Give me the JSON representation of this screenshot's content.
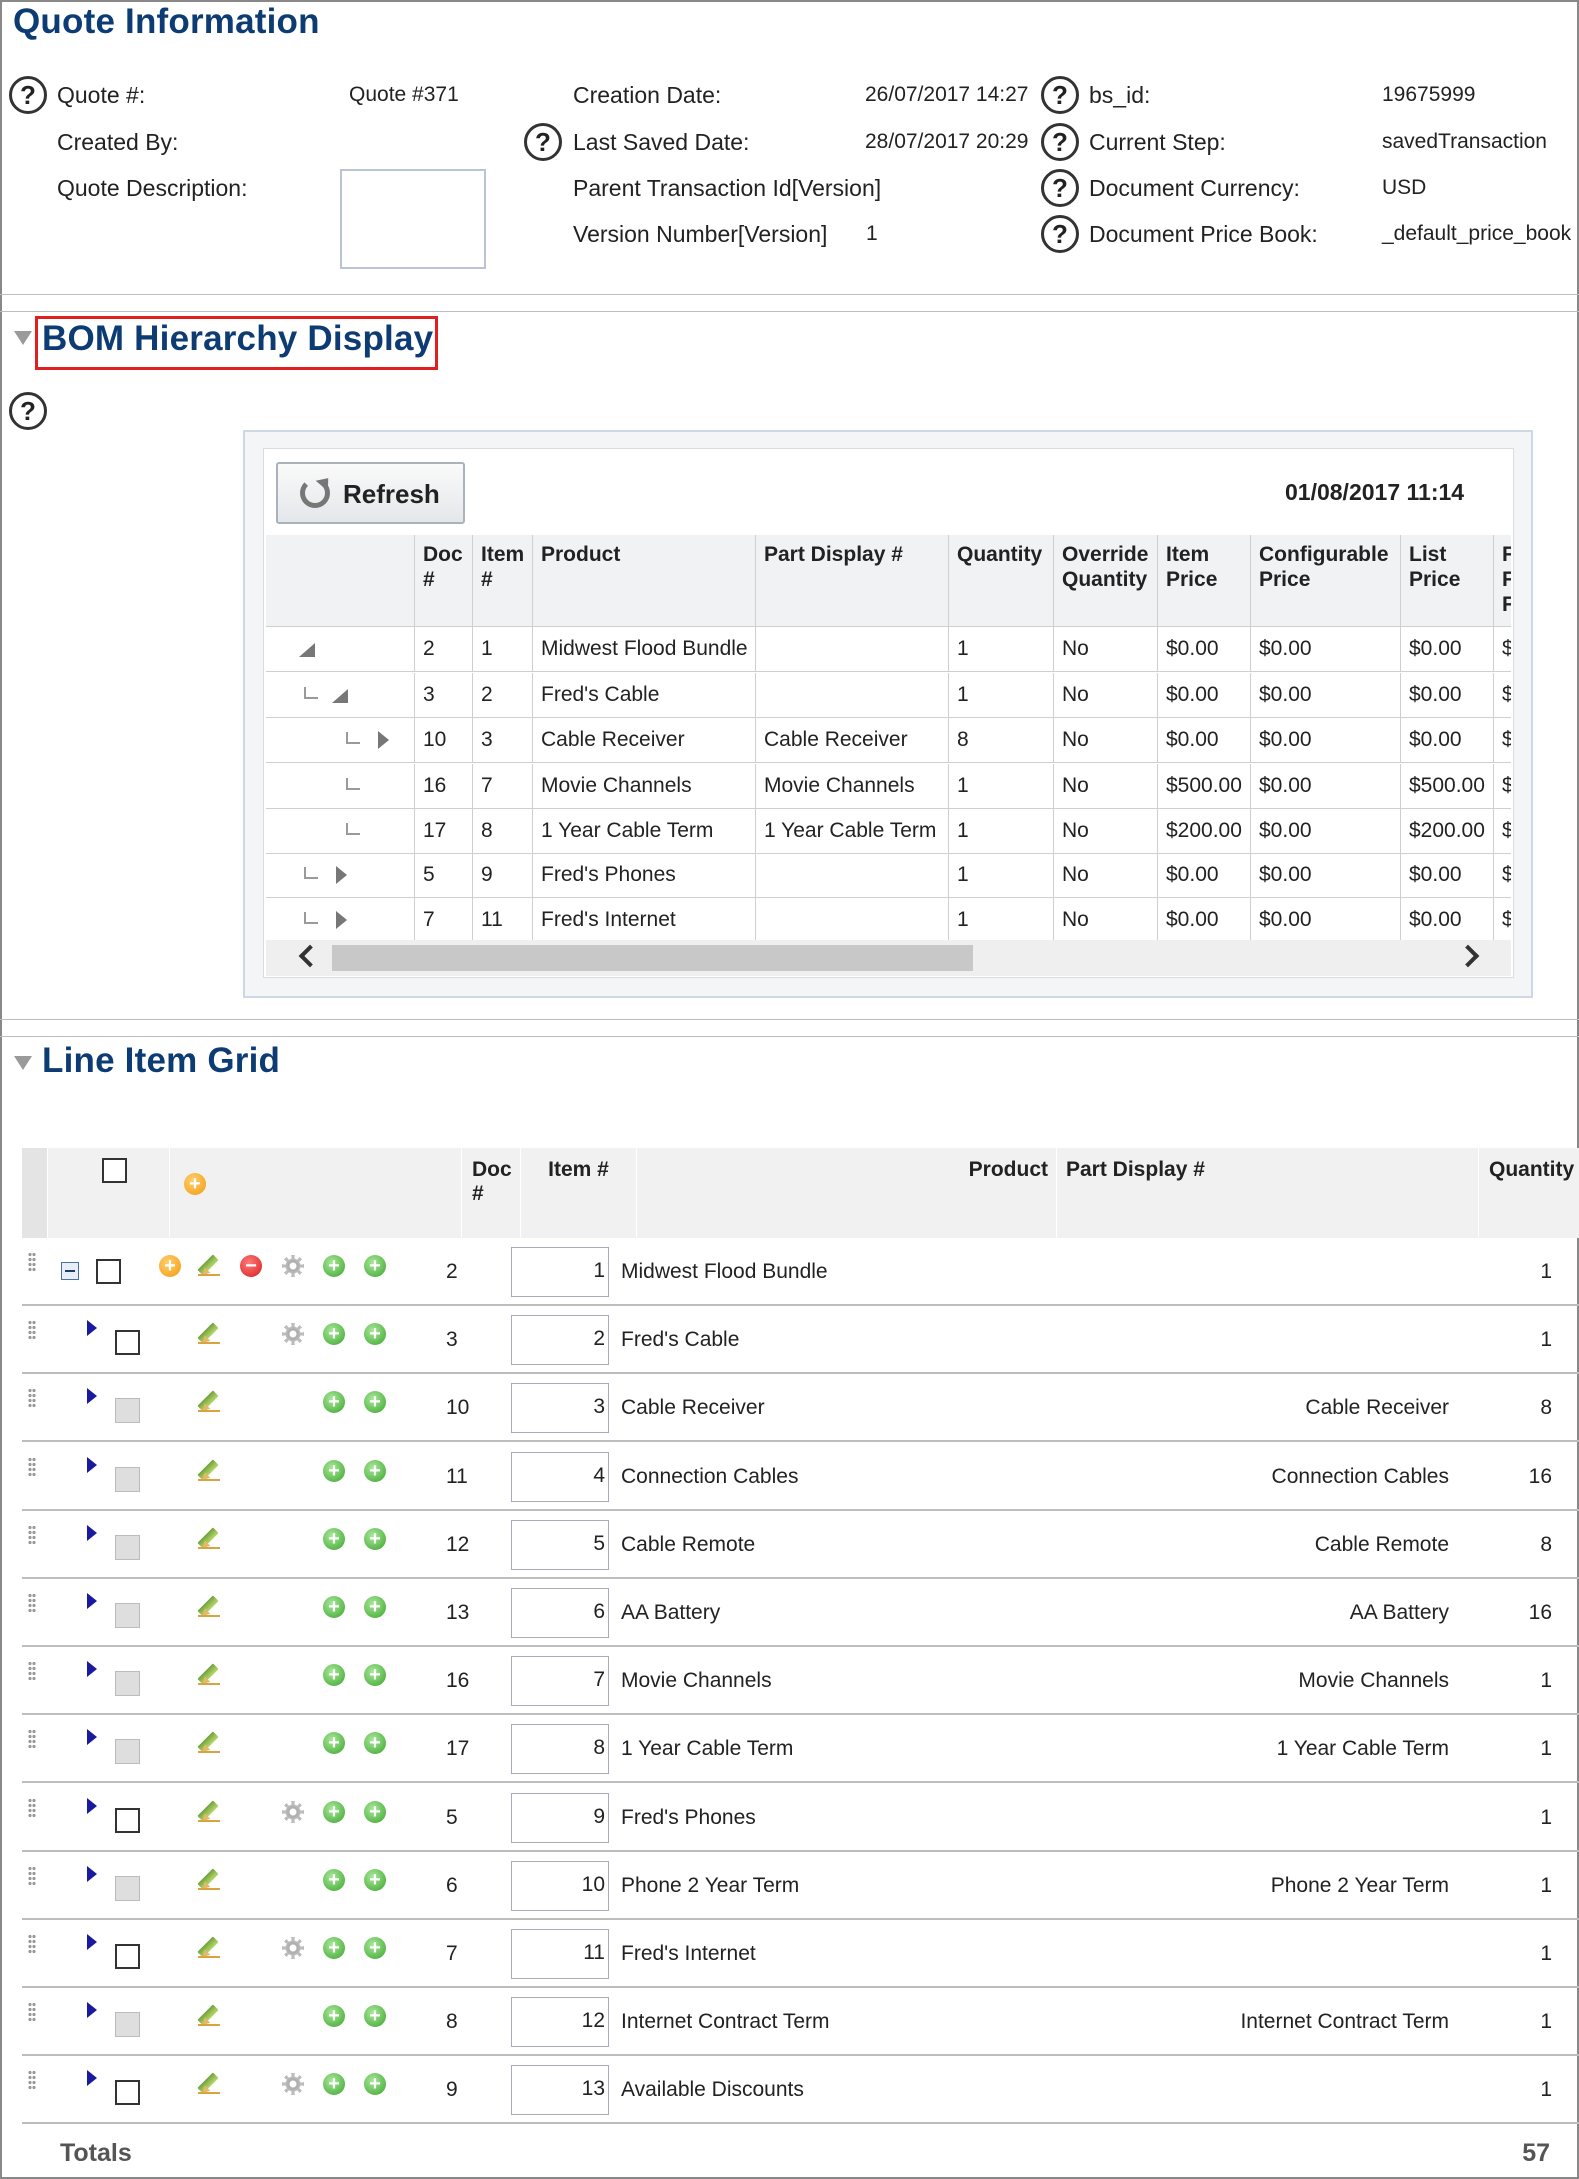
{
  "quote_info": {
    "title": "Quote Information",
    "quote_num_label": "Quote #:",
    "quote_num_value": "Quote #371",
    "created_by_label": "Created By:",
    "quote_desc_label": "Quote Description:",
    "creation_date_label": "Creation Date:",
    "creation_date_value": "26/07/2017 14:27",
    "last_saved_label": "Last Saved Date:",
    "last_saved_value": "28/07/2017 20:29",
    "parent_tx_label": "Parent Transaction Id[Version]",
    "version_label": "Version Number[Version]",
    "version_value": "1",
    "bs_id_label": "bs_id:",
    "bs_id_value": "19675999",
    "current_step_label": "Current Step:",
    "current_step_value": "savedTransaction",
    "currency_label": "Document Currency:",
    "currency_value": "USD",
    "price_book_label": "Document Price Book:",
    "price_book_value": "_default_price_book"
  },
  "bom": {
    "title": "BOM Hierarchy Display",
    "refresh_label": "Refresh",
    "date": "01/08/2017 11:14",
    "columns": [
      "Doc #",
      "Item #",
      "Product",
      "Part Display #",
      "Quantity",
      "Override Quantity",
      "Item Price",
      "Configurable Price",
      "List Price",
      "F F F"
    ],
    "rows": [
      {
        "doc": "2",
        "item": "1",
        "product": "Midwest Flood Bundle",
        "part": "",
        "qty": "1",
        "override": "No",
        "item_price": "$0.00",
        "config_price": "$0.00",
        "list_price": "$0.00",
        "trunc": "$"
      },
      {
        "doc": "3",
        "item": "2",
        "product": "Fred's Cable",
        "part": "",
        "qty": "1",
        "override": "No",
        "item_price": "$0.00",
        "config_price": "$0.00",
        "list_price": "$0.00",
        "trunc": "$"
      },
      {
        "doc": "10",
        "item": "3",
        "product": "Cable Receiver",
        "part": "Cable Receiver",
        "qty": "8",
        "override": "No",
        "item_price": "$0.00",
        "config_price": "$0.00",
        "list_price": "$0.00",
        "trunc": "$"
      },
      {
        "doc": "16",
        "item": "7",
        "product": "Movie Channels",
        "part": "Movie Channels",
        "qty": "1",
        "override": "No",
        "item_price": "$500.00",
        "config_price": "$0.00",
        "list_price": "$500.00",
        "trunc": "$"
      },
      {
        "doc": "17",
        "item": "8",
        "product": "1 Year Cable Term",
        "part": "1 Year Cable Term",
        "qty": "1",
        "override": "No",
        "item_price": "$200.00",
        "config_price": "$0.00",
        "list_price": "$200.00",
        "trunc": "$"
      },
      {
        "doc": "5",
        "item": "9",
        "product": "Fred's Phones",
        "part": "",
        "qty": "1",
        "override": "No",
        "item_price": "$0.00",
        "config_price": "$0.00",
        "list_price": "$0.00",
        "trunc": "$"
      },
      {
        "doc": "7",
        "item": "11",
        "product": "Fred's Internet",
        "part": "",
        "qty": "1",
        "override": "No",
        "item_price": "$0.00",
        "config_price": "$0.00",
        "list_price": "$0.00",
        "trunc": "$"
      }
    ]
  },
  "line_items": {
    "title": "Line Item Grid",
    "columns": {
      "doc": "Doc #",
      "item": "Item #",
      "product": "Product",
      "part": "Part Display #",
      "qty": "Quantity"
    },
    "rows": [
      {
        "doc": "2",
        "item": "1",
        "product": "Midwest Flood Bundle",
        "part": "",
        "qty": "1"
      },
      {
        "doc": "3",
        "item": "2",
        "product": "Fred's Cable",
        "part": "",
        "qty": "1"
      },
      {
        "doc": "10",
        "item": "3",
        "product": "Cable Receiver",
        "part": "Cable Receiver",
        "qty": "8"
      },
      {
        "doc": "11",
        "item": "4",
        "product": "Connection Cables",
        "part": "Connection Cables",
        "qty": "16"
      },
      {
        "doc": "12",
        "item": "5",
        "product": "Cable Remote",
        "part": "Cable Remote",
        "qty": "8"
      },
      {
        "doc": "13",
        "item": "6",
        "product": "AA Battery",
        "part": "AA Battery",
        "qty": "16"
      },
      {
        "doc": "16",
        "item": "7",
        "product": "Movie Channels",
        "part": "Movie Channels",
        "qty": "1"
      },
      {
        "doc": "17",
        "item": "8",
        "product": "1 Year Cable Term",
        "part": "1 Year Cable Term",
        "qty": "1"
      },
      {
        "doc": "5",
        "item": "9",
        "product": "Fred's Phones",
        "part": "",
        "qty": "1"
      },
      {
        "doc": "6",
        "item": "10",
        "product": "Phone 2 Year Term",
        "part": "Phone 2 Year Term",
        "qty": "1"
      },
      {
        "doc": "7",
        "item": "11",
        "product": "Fred's Internet",
        "part": "",
        "qty": "1"
      },
      {
        "doc": "8",
        "item": "12",
        "product": "Internet Contract Term",
        "part": "Internet Contract Term",
        "qty": "1"
      },
      {
        "doc": "9",
        "item": "13",
        "product": "Available Discounts",
        "part": "",
        "qty": "1"
      }
    ],
    "totals_label": "Totals",
    "totals_value": "57"
  }
}
